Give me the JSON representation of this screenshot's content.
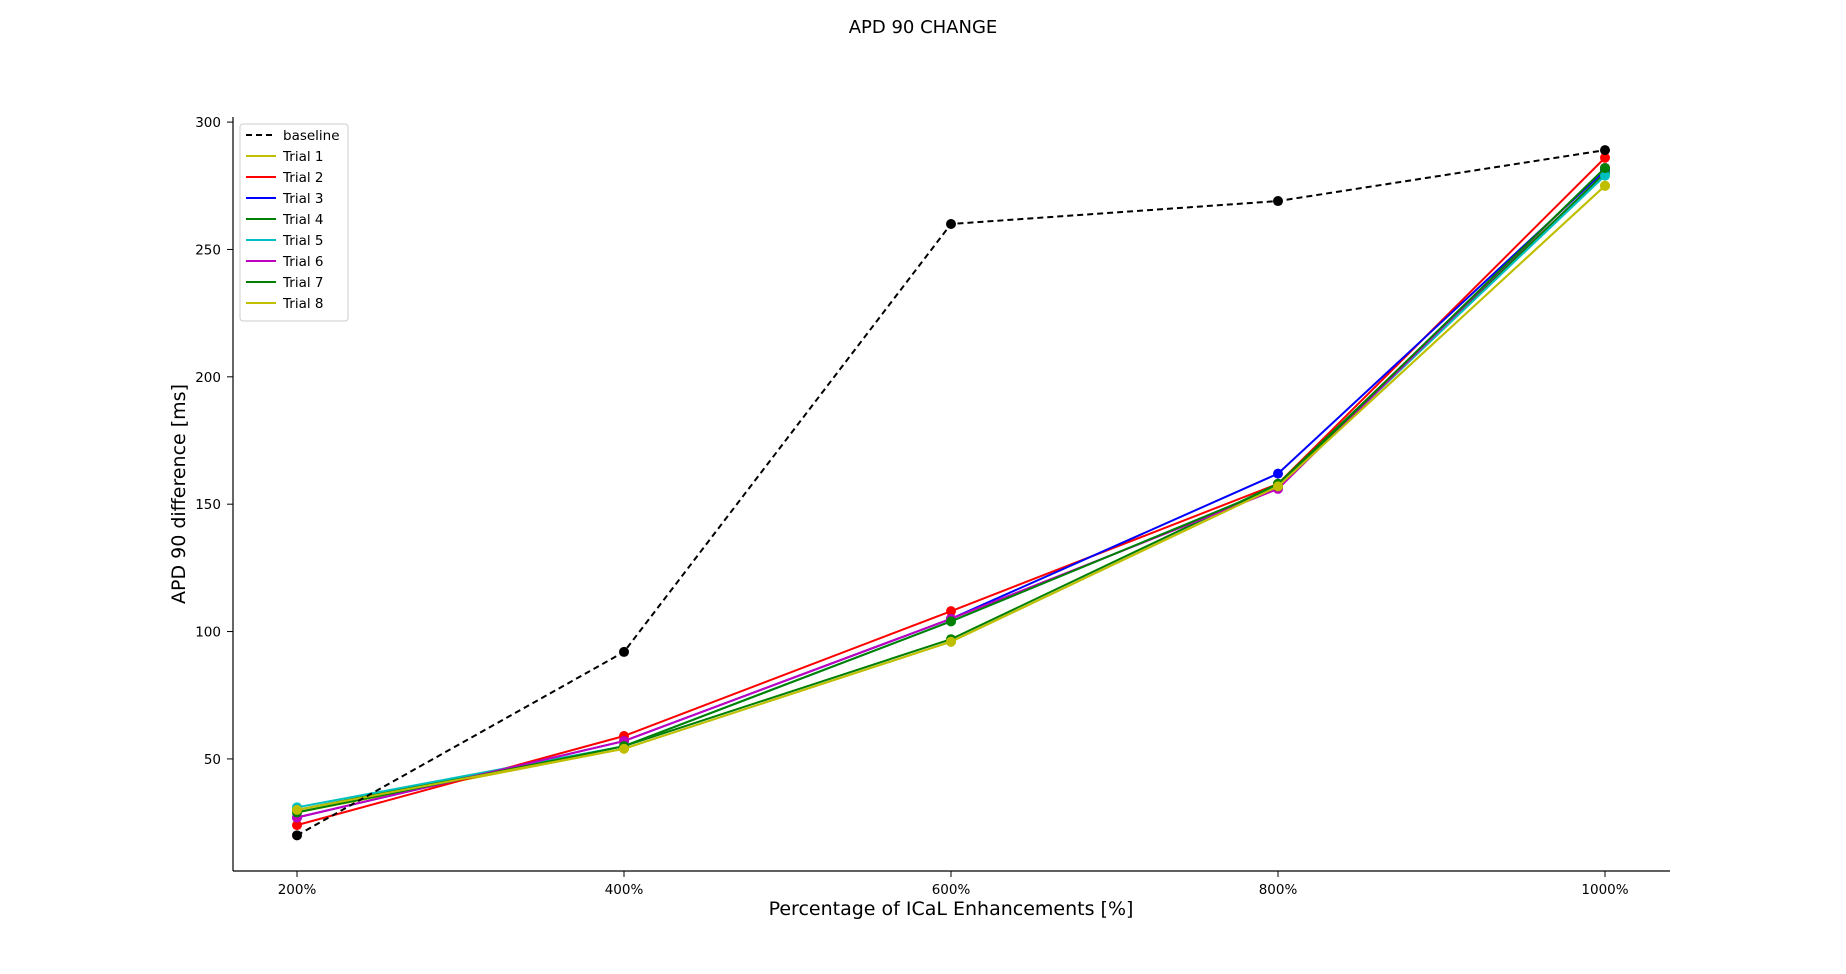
{
  "chart_data": {
    "type": "line",
    "title": "APD 90 CHANGE",
    "xlabel": "Percentage of ICaL Enhancements [%]",
    "ylabel": "APD 90 difference [ms]",
    "categories": [
      "200%",
      "400%",
      "600%",
      "800%",
      "1000%"
    ],
    "ylim": [
      6,
      302
    ],
    "yticks": [
      50,
      100,
      150,
      200,
      250,
      300
    ],
    "grid": false,
    "legend_position": "top-left",
    "series": [
      {
        "name": "baseline",
        "color": "#000000",
        "dashed": true,
        "values": [
          20,
          92,
          260,
          269,
          289
        ]
      },
      {
        "name": "Trial 1",
        "color": "#bfbf00",
        "dashed": false,
        "values": [
          29,
          54,
          96,
          157,
          275
        ]
      },
      {
        "name": "Trial 2",
        "color": "#ff0000",
        "dashed": false,
        "values": [
          24,
          59,
          108,
          158,
          286
        ]
      },
      {
        "name": "Trial 3",
        "color": "#0000ff",
        "dashed": false,
        "values": [
          27,
          57,
          105,
          162,
          281
        ]
      },
      {
        "name": "Trial 4",
        "color": "#008000",
        "dashed": false,
        "values": [
          30,
          55,
          97,
          158,
          280
        ]
      },
      {
        "name": "Trial 5",
        "color": "#00bfbf",
        "dashed": false,
        "values": [
          31,
          55,
          104,
          157,
          279
        ]
      },
      {
        "name": "Trial 6",
        "color": "#bf00bf",
        "dashed": false,
        "values": [
          27,
          57,
          105,
          156,
          282
        ]
      },
      {
        "name": "Trial 7",
        "color": "#008000",
        "dashed": false,
        "values": [
          29,
          55,
          104,
          157,
          282
        ]
      },
      {
        "name": "Trial 8",
        "color": "#bfbf00",
        "dashed": false,
        "values": [
          30,
          54,
          96,
          157,
          275
        ]
      }
    ]
  }
}
